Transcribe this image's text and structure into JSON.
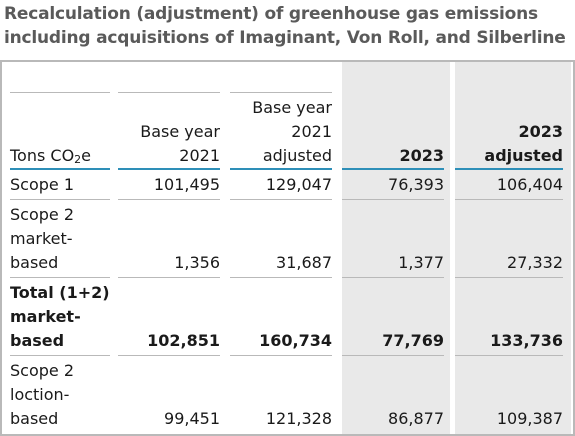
{
  "title": {
    "line1": "Recalculation (adjustment) of greenhouse gas emissions",
    "line2": "including acquisitions of Imaginant, Von Roll, and Silberline"
  },
  "header": {
    "unit_prefix": "Tons CO",
    "unit_sub": "2",
    "unit_suffix": "e",
    "col1_line1": "Base year",
    "col1_line2": "2021",
    "col2_line1": "Base year",
    "col2_line2": "2021",
    "col2_line3": "adjusted",
    "col3_line1": "2023",
    "col4_line1": "2023",
    "col4_line2": "adjusted"
  },
  "rows": [
    {
      "label": [
        "Scope 1"
      ],
      "v1": "101,495",
      "v2": "129,047",
      "v3": "76,393",
      "v4": "106,404"
    },
    {
      "label": [
        "Scope 2",
        "market-",
        "based"
      ],
      "v1": "1,356",
      "v2": "31,687",
      "v3": "1,377",
      "v4": "27,332"
    },
    {
      "label": [
        "Total (1+2)",
        "market-",
        "based"
      ],
      "v1": "102,851",
      "v2": "160,734",
      "v3": "77,769",
      "v4": "133,736"
    },
    {
      "label": [
        "Scope 2",
        "loction-",
        "based"
      ],
      "v1": "99,451",
      "v2": "121,328",
      "v3": "86,877",
      "v4": "109,387"
    }
  ],
  "colors": {
    "title": "#5a5a5a",
    "rule": "#2e8fb8",
    "shade": "#e9e9e9",
    "border": "#b9b9b9"
  }
}
